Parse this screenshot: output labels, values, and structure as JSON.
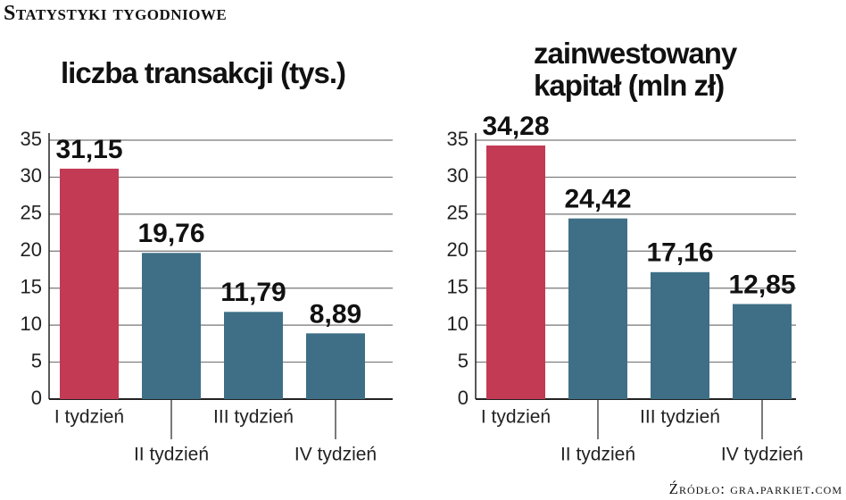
{
  "header": {
    "title": "Statystyki tygodniowe",
    "source": "Źródło: gra.parkiet.com"
  },
  "chart_data": [
    {
      "type": "bar",
      "title": "liczba transakcji (tys.)",
      "categories": [
        "I tydzień",
        "II tydzień",
        "III tydzień",
        "IV tydzień"
      ],
      "values": [
        31.15,
        19.76,
        11.79,
        8.89
      ],
      "value_labels": [
        "31,15",
        "19,76",
        "11,79",
        "8,89"
      ],
      "colors": [
        "#c23a54",
        "#3e6f86",
        "#3e6f86",
        "#3e6f86"
      ],
      "ylim": [
        0,
        35
      ],
      "yticks": [
        0,
        5,
        10,
        15,
        20,
        25,
        30,
        35
      ],
      "grid": true
    },
    {
      "type": "bar",
      "title": "zainwestowany kapitał (mln zł)",
      "categories": [
        "I tydzień",
        "II tydzień",
        "III tydzień",
        "IV tydzień"
      ],
      "values": [
        34.28,
        24.42,
        17.16,
        12.85
      ],
      "value_labels": [
        "34,28",
        "24,42",
        "17,16",
        "12,85"
      ],
      "colors": [
        "#c23a54",
        "#3e6f86",
        "#3e6f86",
        "#3e6f86"
      ],
      "ylim": [
        0,
        35
      ],
      "yticks": [
        0,
        5,
        10,
        15,
        20,
        25,
        30,
        35
      ],
      "grid": true
    }
  ]
}
